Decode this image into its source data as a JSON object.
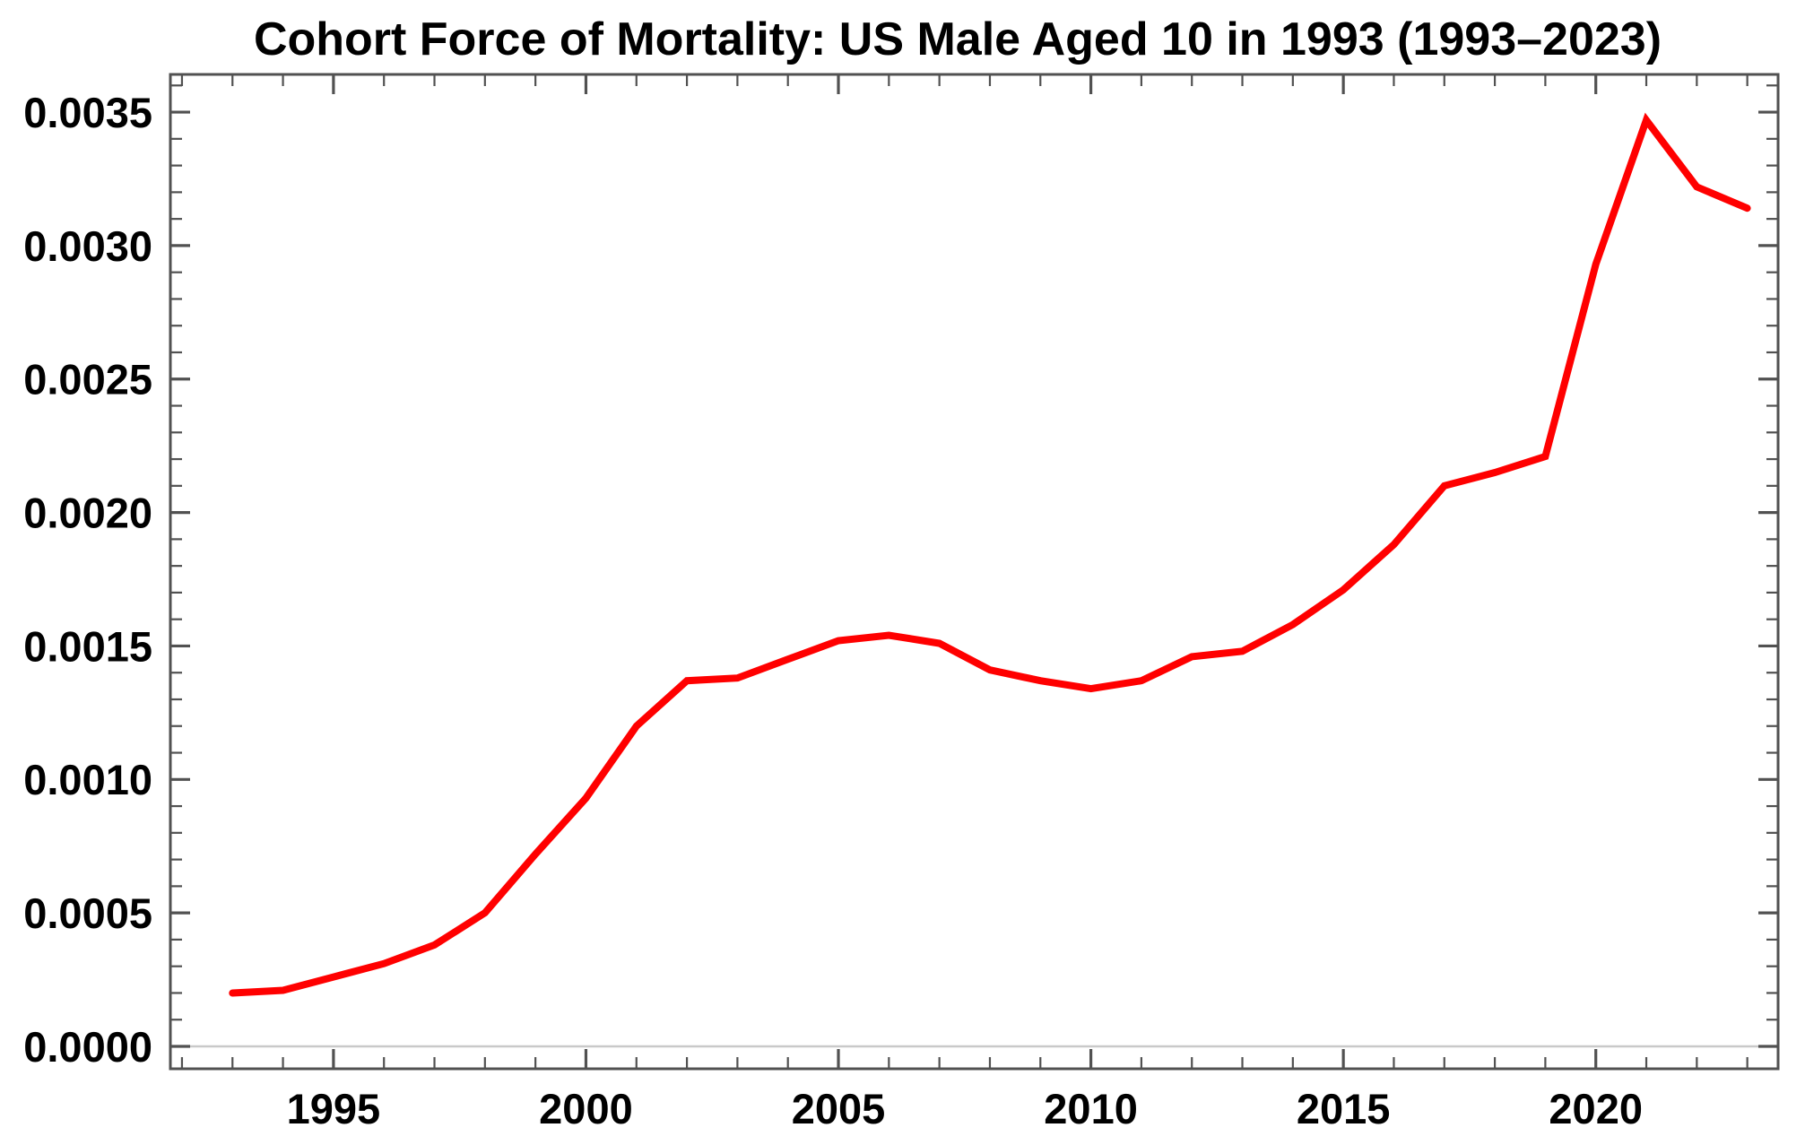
{
  "chart_data": {
    "type": "line",
    "title": "Cohort Force of Mortality: US Male Aged 10 in 1993 (1993–2023)",
    "xlabel": "",
    "ylabel": "",
    "x": [
      1993,
      1994,
      1995,
      1996,
      1997,
      1998,
      1999,
      2000,
      2001,
      2002,
      2003,
      2004,
      2005,
      2006,
      2007,
      2008,
      2009,
      2010,
      2011,
      2012,
      2013,
      2014,
      2015,
      2016,
      2017,
      2018,
      2019,
      2020,
      2021,
      2022,
      2023
    ],
    "series": [
      {
        "name": "cohort-force-of-mortality",
        "color": "#ff0000",
        "values": [
          0.0002,
          0.00021,
          0.00026,
          0.00031,
          0.00038,
          0.0005,
          0.00072,
          0.00093,
          0.0012,
          0.00137,
          0.00138,
          0.00145,
          0.00152,
          0.00154,
          0.00151,
          0.00141,
          0.00137,
          0.00134,
          0.00137,
          0.00146,
          0.00148,
          0.00158,
          0.00171,
          0.00188,
          0.0021,
          0.00215,
          0.00221,
          0.00293,
          0.00347,
          0.00322,
          0.00314
        ]
      }
    ],
    "xlim": [
      1991.77,
      2023.61
    ],
    "ylim": [
      -8.4e-05,
      0.0036413
    ],
    "x_ticks": {
      "major": [
        1995,
        2000,
        2005,
        2010,
        2015,
        2020
      ],
      "labels": [
        "1995",
        "2000",
        "2005",
        "2010",
        "2015",
        "2020"
      ],
      "minor_step": 1
    },
    "y_ticks": {
      "major": [
        0.0,
        0.0005,
        0.001,
        0.0015,
        0.002,
        0.0025,
        0.003,
        0.0035
      ],
      "labels": [
        "0.0000",
        "0.0005",
        "0.0010",
        "0.0015",
        "0.0020",
        "0.0025",
        "0.0030",
        "0.0035"
      ],
      "minor_step": 0.0001
    },
    "grid": false,
    "legend": false,
    "frame": true,
    "frame_color": "#515151",
    "zero_line_color": "#c9c9c9",
    "background_color": "#ffffff",
    "line_width": 8
  }
}
